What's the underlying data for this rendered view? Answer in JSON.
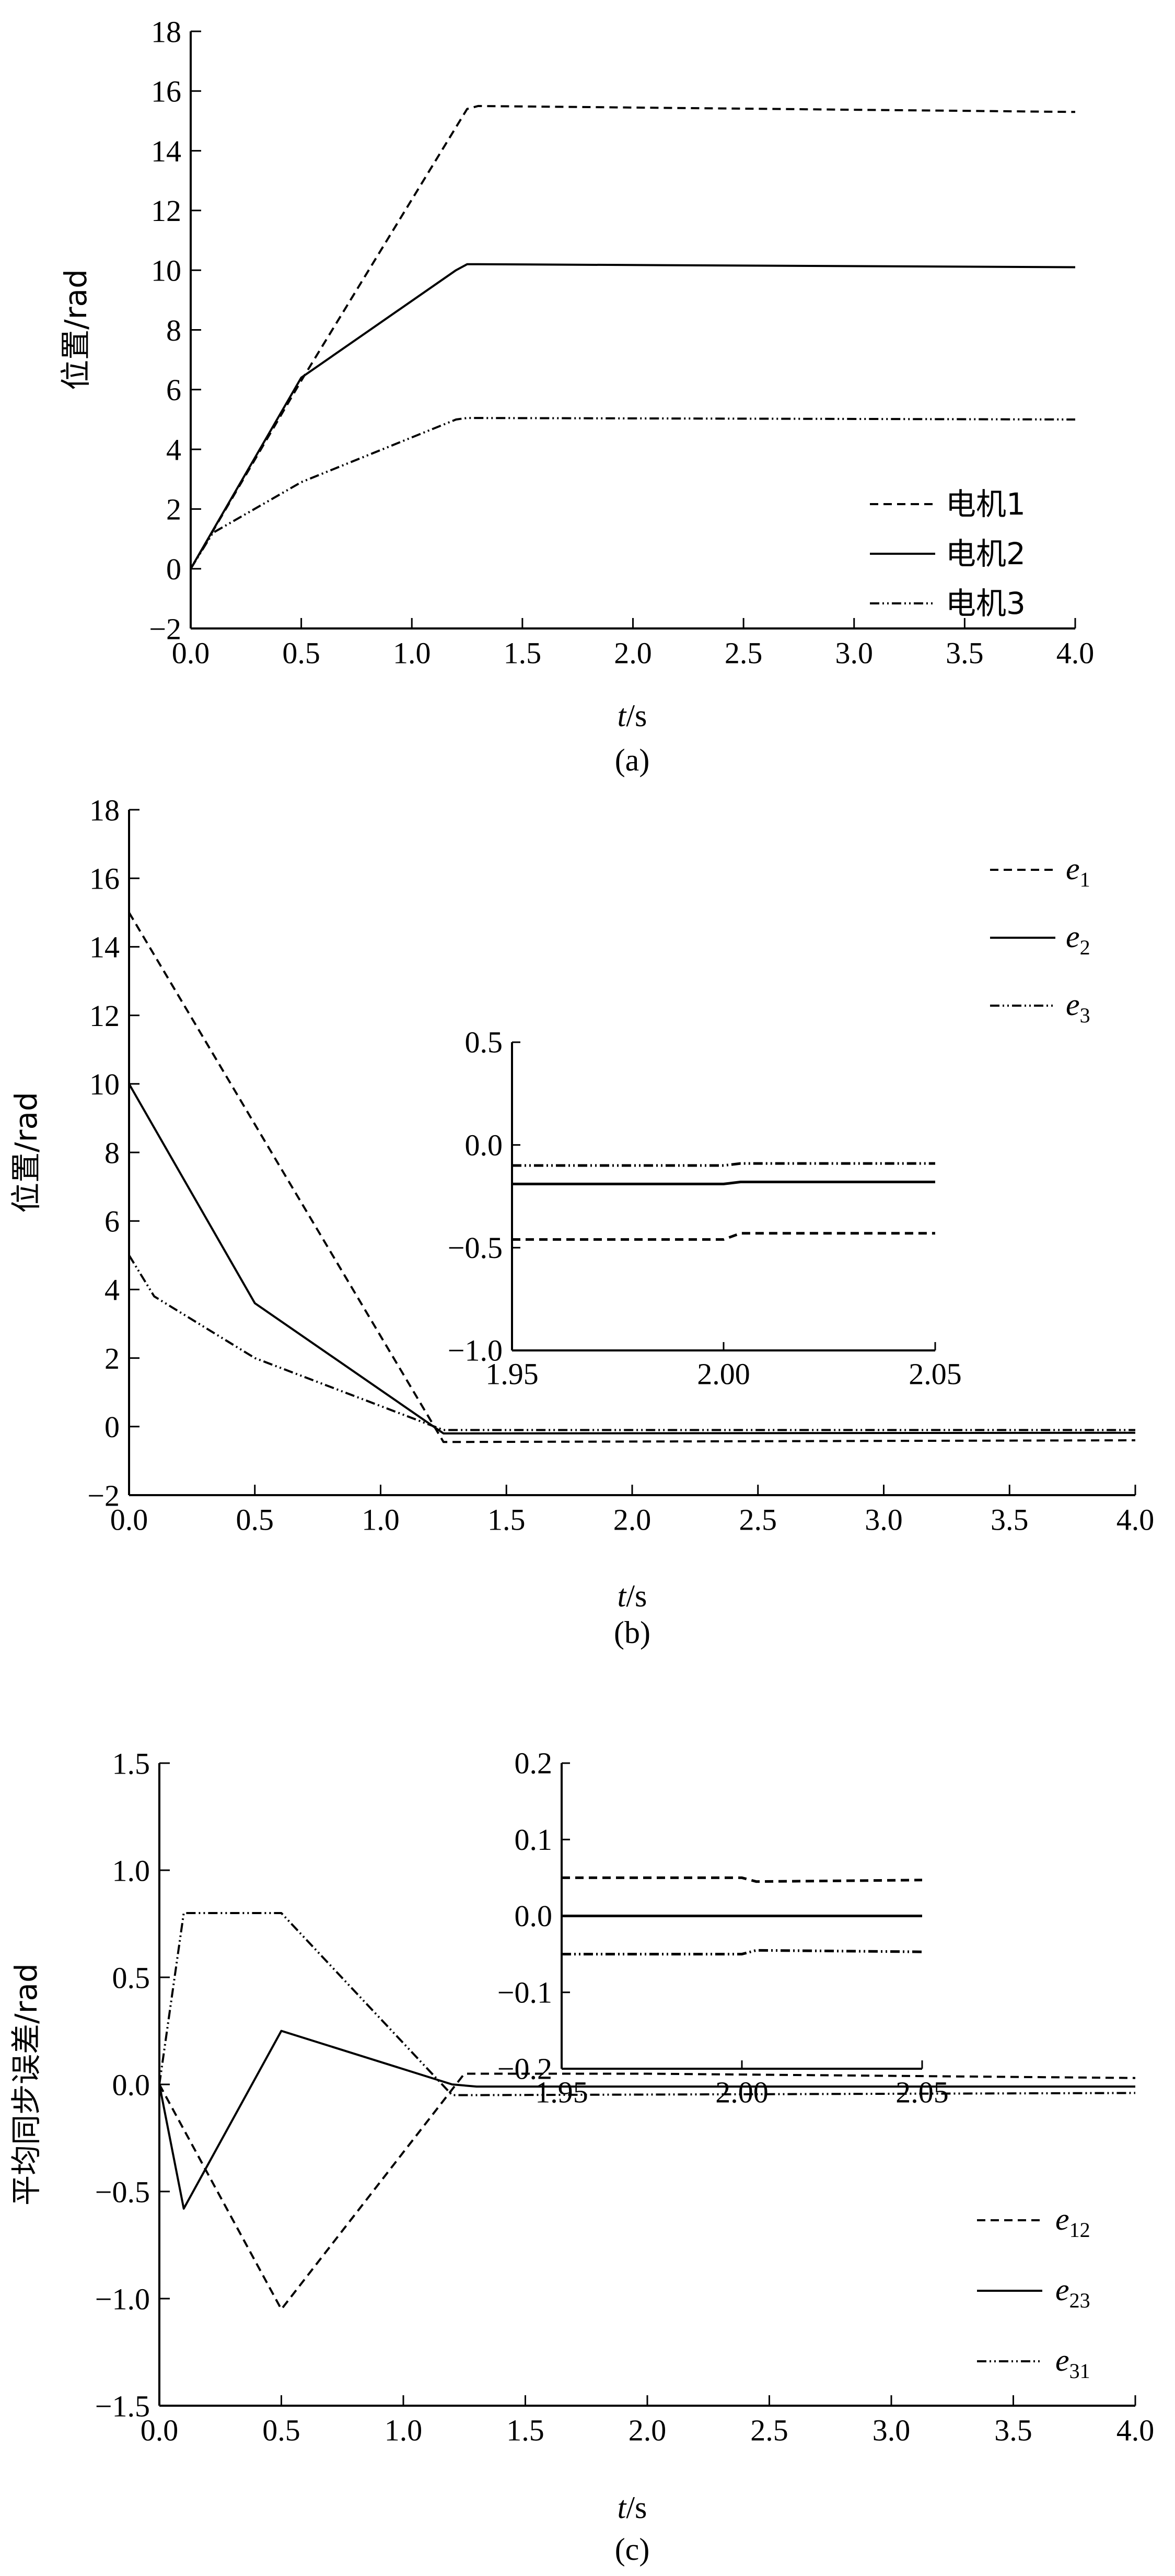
{
  "chart_data": [
    {
      "type": "line",
      "caption": "(a)",
      "xlabel_italic": "t",
      "xlabel_unit": "/s",
      "ylabel": "位置/rad",
      "xlim": [
        0,
        4.0
      ],
      "ylim": [
        -2,
        18
      ],
      "xticks": [
        0.0,
        0.5,
        1.0,
        1.5,
        2.0,
        2.5,
        3.0,
        3.5,
        4.0
      ],
      "xtick_labels": [
        "0.0",
        "0.5",
        "1.0",
        "1.5",
        "2.0",
        "2.5",
        "3.0",
        "3.5",
        "4.0"
      ],
      "yticks": [
        -2,
        0,
        2,
        4,
        6,
        8,
        10,
        12,
        14,
        16,
        18
      ],
      "ytick_labels": [
        "−2",
        "0",
        "2",
        "4",
        "6",
        "8",
        "10",
        "12",
        "14",
        "16",
        "18"
      ],
      "legend_position": "bottom-right",
      "series": [
        {
          "name": "电机1",
          "style": "dashed",
          "x": [
            0,
            0.5,
            1.25,
            1.3,
            4.0
          ],
          "y": [
            0,
            6.3,
            15.4,
            15.5,
            15.3
          ]
        },
        {
          "name": "电机2",
          "style": "solid",
          "x": [
            0,
            0.5,
            1.2,
            1.25,
            1.3,
            4.0
          ],
          "y": [
            0,
            6.4,
            10.0,
            10.2,
            10.2,
            10.1
          ]
        },
        {
          "name": "电机3",
          "style": "dashdot",
          "x": [
            0,
            0.1,
            0.5,
            1.2,
            1.25,
            4.0
          ],
          "y": [
            0,
            1.2,
            2.9,
            5.0,
            5.05,
            5.0
          ]
        }
      ]
    },
    {
      "type": "line",
      "caption": "(b)",
      "xlabel_italic": "t",
      "xlabel_unit": "/s",
      "ylabel": "位置/rad",
      "xlim": [
        0,
        4.0
      ],
      "ylim": [
        -2,
        18
      ],
      "xticks": [
        0.0,
        0.5,
        1.0,
        1.5,
        2.0,
        2.5,
        3.0,
        3.5,
        4.0
      ],
      "xtick_labels": [
        "0.0",
        "0.5",
        "1.0",
        "1.5",
        "2.0",
        "2.5",
        "3.0",
        "3.5",
        "4.0"
      ],
      "yticks": [
        -2,
        0,
        2,
        4,
        6,
        8,
        10,
        12,
        14,
        16,
        18
      ],
      "ytick_labels": [
        "−2",
        "0",
        "2",
        "4",
        "6",
        "8",
        "10",
        "12",
        "14",
        "16",
        "18"
      ],
      "legend_position": "top-right",
      "series": [
        {
          "name": "e",
          "sub": "1",
          "style": "dashed",
          "x": [
            0,
            1.25,
            4.0
          ],
          "y": [
            15.0,
            -0.45,
            -0.4
          ]
        },
        {
          "name": "e",
          "sub": "2",
          "style": "solid",
          "x": [
            0,
            0.5,
            1.25,
            4.0
          ],
          "y": [
            10.0,
            3.6,
            -0.2,
            -0.18
          ]
        },
        {
          "name": "e",
          "sub": "3",
          "style": "dashdot",
          "x": [
            0,
            0.1,
            0.5,
            1.25,
            4.0
          ],
          "y": [
            5.0,
            3.8,
            2.0,
            -0.1,
            -0.1
          ]
        }
      ],
      "inset": {
        "xlim": [
          1.95,
          2.05
        ],
        "ylim": [
          -1.0,
          0.5
        ],
        "xticks": [
          1.95,
          2.0,
          2.05
        ],
        "xtick_labels": [
          "1.95",
          "2.00",
          "2.05"
        ],
        "yticks": [
          -1.0,
          -0.5,
          0.0,
          0.5
        ],
        "ytick_labels": [
          "−1.0",
          "−0.5",
          "0.0",
          "0.5"
        ],
        "series": [
          {
            "style": "dashed",
            "x": [
              1.95,
              2.0,
              2.004,
              2.05
            ],
            "y": [
              -0.46,
              -0.46,
              -0.43,
              -0.43
            ]
          },
          {
            "style": "solid",
            "x": [
              1.95,
              2.0,
              2.004,
              2.05
            ],
            "y": [
              -0.19,
              -0.19,
              -0.18,
              -0.18
            ]
          },
          {
            "style": "dashdot",
            "x": [
              1.95,
              2.0,
              2.004,
              2.05
            ],
            "y": [
              -0.1,
              -0.1,
              -0.09,
              -0.09
            ]
          }
        ]
      }
    },
    {
      "type": "line",
      "caption": "(c)",
      "xlabel_italic": "t",
      "xlabel_unit": "/s",
      "ylabel": "平均同步误差/rad",
      "xlim": [
        0,
        4.0
      ],
      "ylim": [
        -1.5,
        1.5
      ],
      "xticks": [
        0.0,
        0.5,
        1.0,
        1.5,
        2.0,
        2.5,
        3.0,
        3.5,
        4.0
      ],
      "xtick_labels": [
        "0.0",
        "0.5",
        "1.0",
        "1.5",
        "2.0",
        "2.5",
        "3.0",
        "3.5",
        "4.0"
      ],
      "yticks": [
        -1.5,
        -1.0,
        -0.5,
        0.0,
        0.5,
        1.0,
        1.5
      ],
      "ytick_labels": [
        "−1.5",
        "−1.0",
        "−0.5",
        "0.0",
        "0.5",
        "1.0",
        "1.5"
      ],
      "legend_position": "bottom-right",
      "series": [
        {
          "name": "e",
          "sub": "12",
          "style": "dashed",
          "x": [
            0,
            0.5,
            1.25,
            2.0,
            4.0
          ],
          "y": [
            0,
            -1.05,
            0.05,
            0.05,
            0.03
          ]
        },
        {
          "name": "e",
          "sub": "23",
          "style": "solid",
          "x": [
            0,
            0.1,
            0.5,
            1.2,
            1.3,
            4.0
          ],
          "y": [
            0,
            -0.58,
            0.25,
            0.0,
            -0.01,
            -0.01
          ]
        },
        {
          "name": "e",
          "sub": "31",
          "style": "dashdot",
          "x": [
            0,
            0.1,
            0.5,
            1.2,
            1.3,
            4.0
          ],
          "y": [
            0,
            0.8,
            0.8,
            -0.05,
            -0.05,
            -0.04
          ]
        }
      ],
      "inset": {
        "xlim": [
          1.95,
          2.05
        ],
        "ylim": [
          -0.2,
          0.2
        ],
        "xticks": [
          1.95,
          2.0,
          2.05
        ],
        "xtick_labels": [
          "1.95",
          "2.00",
          "2.05"
        ],
        "yticks": [
          -0.2,
          -0.1,
          0.0,
          0.1,
          0.2
        ],
        "ytick_labels": [
          "−0.2",
          "−0.1",
          "0.0",
          "0.1",
          "0.2"
        ],
        "series": [
          {
            "style": "dashed",
            "x": [
              1.95,
              2.0,
              2.004,
              2.05
            ],
            "y": [
              0.05,
              0.05,
              0.045,
              0.047
            ]
          },
          {
            "style": "solid",
            "x": [
              1.95,
              2.05
            ],
            "y": [
              0.0,
              0.0
            ]
          },
          {
            "style": "dashdot",
            "x": [
              1.95,
              2.0,
              2.004,
              2.05
            ],
            "y": [
              -0.05,
              -0.05,
              -0.045,
              -0.047
            ]
          }
        ]
      }
    }
  ]
}
